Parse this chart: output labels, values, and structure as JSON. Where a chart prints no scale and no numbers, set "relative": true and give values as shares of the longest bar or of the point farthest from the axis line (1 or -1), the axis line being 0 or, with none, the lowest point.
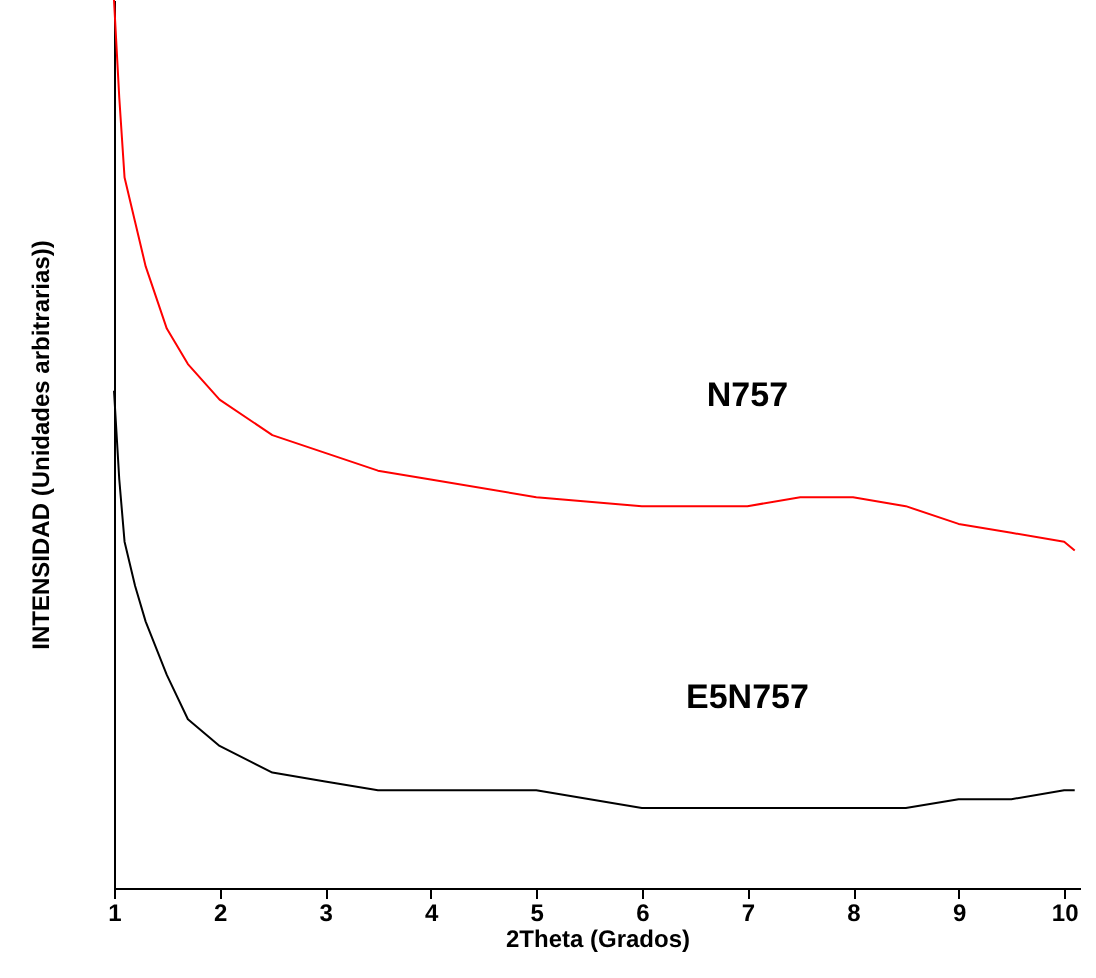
{
  "chart_data": {
    "type": "line",
    "relative": true,
    "xlabel": "2Theta (Grados)",
    "ylabel": "INTENSIDAD (Unidades arbitrarias))",
    "xlim": [
      1,
      10.15
    ],
    "xticks": [
      1,
      2,
      3,
      4,
      5,
      6,
      7,
      8,
      9,
      10
    ],
    "grid": false,
    "marker": "none",
    "line_style": "solid",
    "x": [
      1,
      1.05,
      1.1,
      1.2,
      1.3,
      1.5,
      1.7,
      2,
      2.5,
      3,
      3.5,
      4,
      5,
      6,
      7,
      7.5,
      8,
      8.5,
      9,
      9.5,
      10,
      10.1
    ],
    "series": [
      {
        "name": "N757",
        "color": "#ff0000",
        "values": [
          1.0,
          0.89,
          0.8,
          0.75,
          0.7,
          0.63,
          0.59,
          0.55,
          0.51,
          0.49,
          0.47,
          0.46,
          0.44,
          0.43,
          0.43,
          0.44,
          0.44,
          0.43,
          0.41,
          0.4,
          0.39,
          0.38
        ]
      },
      {
        "name": "E5N757",
        "color": "#000000",
        "values": [
          0.56,
          0.46,
          0.39,
          0.34,
          0.3,
          0.24,
          0.19,
          0.16,
          0.13,
          0.12,
          0.11,
          0.11,
          0.11,
          0.09,
          0.09,
          0.09,
          0.09,
          0.09,
          0.1,
          0.1,
          0.11,
          0.11
        ]
      }
    ]
  }
}
